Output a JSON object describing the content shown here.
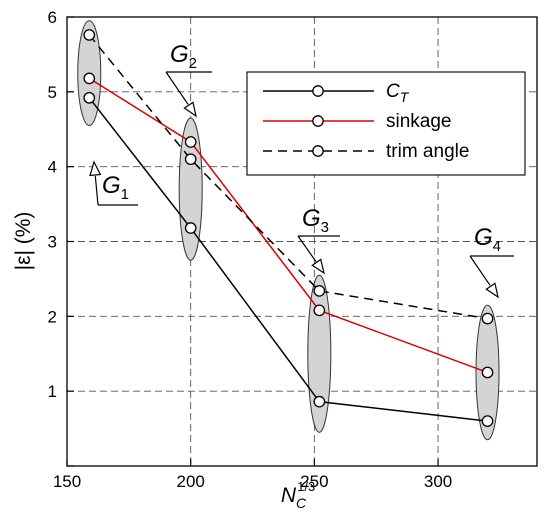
{
  "chart_data": {
    "type": "line",
    "xlabel": "N_C^{1/3}",
    "xlabel_parts": {
      "base": "N",
      "sub": "C",
      "sup": "1/3"
    },
    "ylabel": "|ε| (%)",
    "xlim": [
      150,
      340
    ],
    "ylim": [
      0,
      6
    ],
    "x_ticks": [
      150,
      200,
      250,
      300
    ],
    "y_ticks": [
      1,
      2,
      3,
      4,
      5,
      6
    ],
    "grid": {
      "x": true,
      "y": true,
      "style": "dashed"
    },
    "legend": {
      "position": "top-right"
    },
    "series": [
      {
        "name": "C_T",
        "name_parts": {
          "base": "C",
          "sub": "T"
        },
        "color": "#000000",
        "line_style": "solid",
        "x": [
          159,
          200,
          252,
          320
        ],
        "y": [
          4.92,
          3.18,
          0.86,
          0.6
        ]
      },
      {
        "name": "sinkage",
        "color": "#dd0000",
        "line_style": "solid",
        "x": [
          159,
          200,
          252,
          320
        ],
        "y": [
          5.18,
          4.33,
          2.08,
          1.25
        ]
      },
      {
        "name": "trim angle",
        "color": "#000000",
        "line_style": "dashed",
        "x": [
          159,
          200,
          252,
          320
        ],
        "y": [
          5.76,
          4.1,
          2.34,
          1.97
        ]
      }
    ],
    "groups": [
      {
        "label": "G",
        "sub": "1",
        "x": 159,
        "y_min": 4.55,
        "y_max": 5.95
      },
      {
        "label": "G",
        "sub": "2",
        "x": 200,
        "y_min": 2.75,
        "y_max": 4.65
      },
      {
        "label": "G",
        "sub": "3",
        "x": 252,
        "y_min": 0.45,
        "y_max": 2.55
      },
      {
        "label": "G",
        "sub": "4",
        "x": 320,
        "y_min": 0.35,
        "y_max": 2.15
      }
    ]
  }
}
